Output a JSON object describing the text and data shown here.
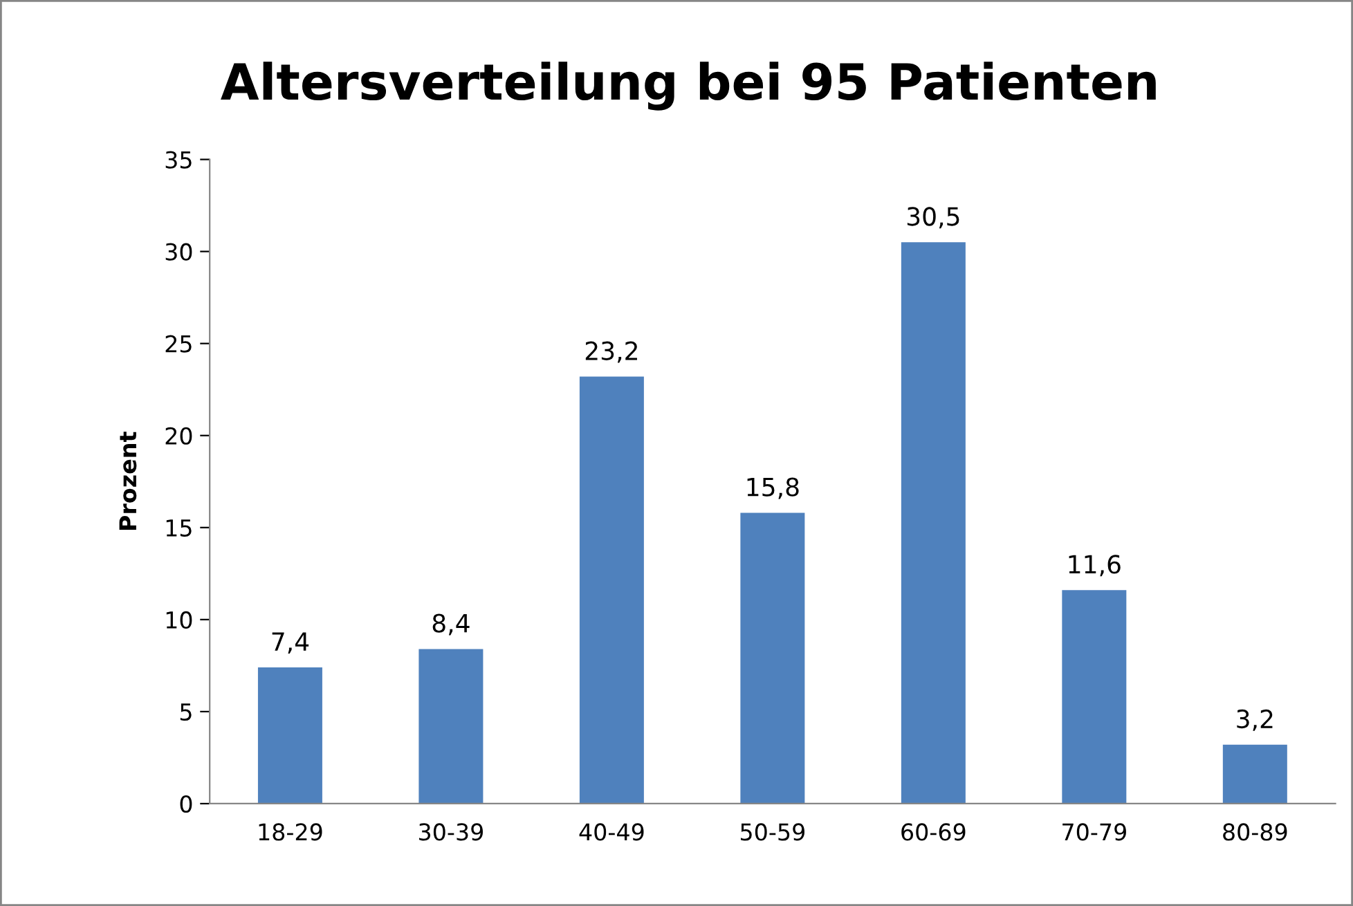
{
  "chart_data": {
    "type": "bar",
    "title": "Altersverteilung bei 95 Patienten",
    "ylabel": "Prozent",
    "categories": [
      "18-29",
      "30-39",
      "40-49",
      "50-59",
      "60-69",
      "70-79",
      "80-89"
    ],
    "values": [
      7.4,
      8.4,
      23.2,
      15.8,
      30.5,
      11.6,
      3.2
    ],
    "value_labels": [
      "7,4",
      "8,4",
      "23,2",
      "15,8",
      "30,5",
      "11,6",
      "3,2"
    ],
    "color": "#4f81bd",
    "ylim": [
      0,
      35
    ],
    "yticks": [
      0,
      5,
      10,
      15,
      20,
      25,
      30,
      35
    ],
    "grid": false,
    "legend": false
  }
}
